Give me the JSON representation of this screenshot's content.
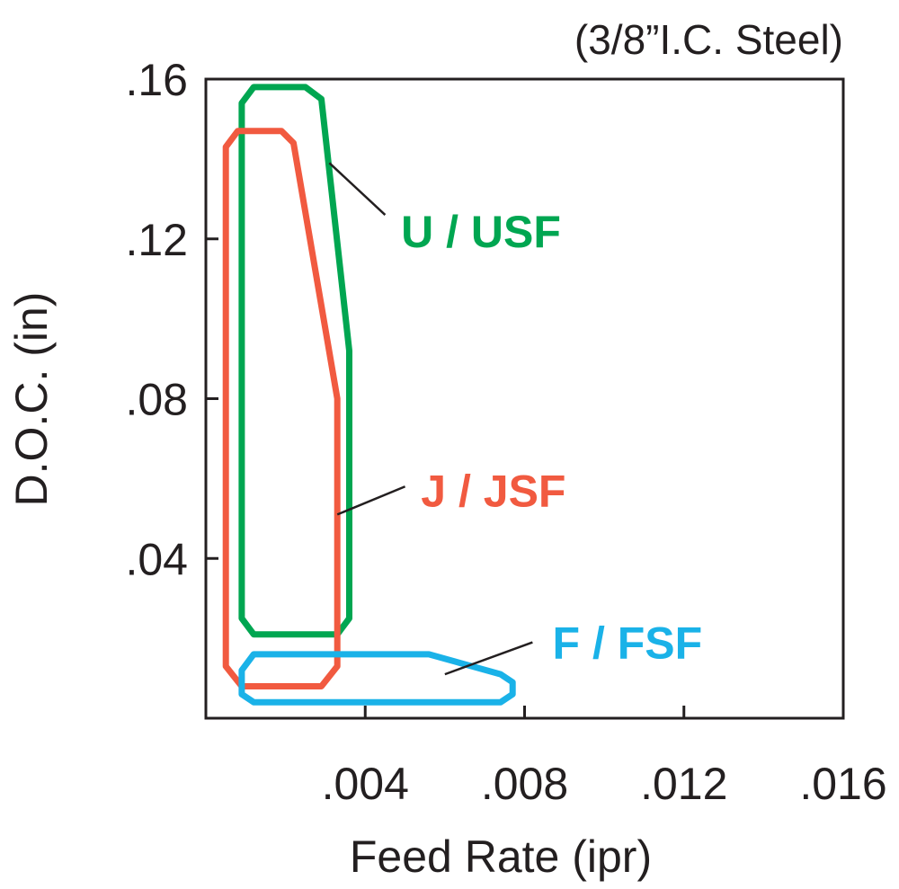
{
  "chart_data": {
    "type": "area",
    "title": "(3/8”I.C. Steel)",
    "xlabel": "Feed Rate (ipr)",
    "ylabel": "D.O.C. (in)",
    "xlim": [
      0,
      0.016
    ],
    "ylim": [
      0,
      0.16
    ],
    "x_ticks": [
      ".004",
      ".008",
      ".012",
      ".016"
    ],
    "y_ticks": [
      ".04",
      ".08",
      ".12",
      ".16"
    ],
    "grid": false,
    "series": [
      {
        "name": "U / USF",
        "color": "#00a651",
        "points": [
          [
            0.0009,
            0.025
          ],
          [
            0.0009,
            0.154
          ],
          [
            0.0012,
            0.158
          ],
          [
            0.0025,
            0.158
          ],
          [
            0.0029,
            0.155
          ],
          [
            0.0036,
            0.092
          ],
          [
            0.0036,
            0.025
          ],
          [
            0.0033,
            0.021
          ],
          [
            0.0012,
            0.021
          ]
        ]
      },
      {
        "name": "J / JSF",
        "color": "#f15a40",
        "points": [
          [
            0.0005,
            0.013
          ],
          [
            0.0005,
            0.143
          ],
          [
            0.0008,
            0.147
          ],
          [
            0.0019,
            0.147
          ],
          [
            0.0022,
            0.144
          ],
          [
            0.0033,
            0.08
          ],
          [
            0.0033,
            0.013
          ],
          [
            0.0029,
            0.008
          ],
          [
            0.0009,
            0.008
          ]
        ]
      },
      {
        "name": "F / FSF",
        "color": "#1ab2e8",
        "points": [
          [
            0.0009,
            0.012
          ],
          [
            0.0012,
            0.016
          ],
          [
            0.0056,
            0.016
          ],
          [
            0.0074,
            0.011
          ],
          [
            0.0077,
            0.009
          ],
          [
            0.0077,
            0.006
          ],
          [
            0.0074,
            0.004
          ],
          [
            0.0012,
            0.004
          ],
          [
            0.0009,
            0.006
          ]
        ]
      }
    ],
    "annotations": [
      {
        "series": 0,
        "text": "U / USF",
        "label_at": [
          0.0049,
          0.122
        ],
        "leader": [
          [
            0.0031,
            0.139
          ],
          [
            0.0045,
            0.126
          ]
        ]
      },
      {
        "series": 1,
        "text": "J / JSF",
        "label_at": [
          0.0054,
          0.057
        ],
        "leader": [
          [
            0.0033,
            0.051
          ],
          [
            0.005,
            0.058
          ]
        ]
      },
      {
        "series": 2,
        "text": "F / FSF",
        "label_at": [
          0.0087,
          0.019
        ],
        "leader": [
          [
            0.006,
            0.011
          ],
          [
            0.0082,
            0.019
          ]
        ]
      }
    ]
  }
}
